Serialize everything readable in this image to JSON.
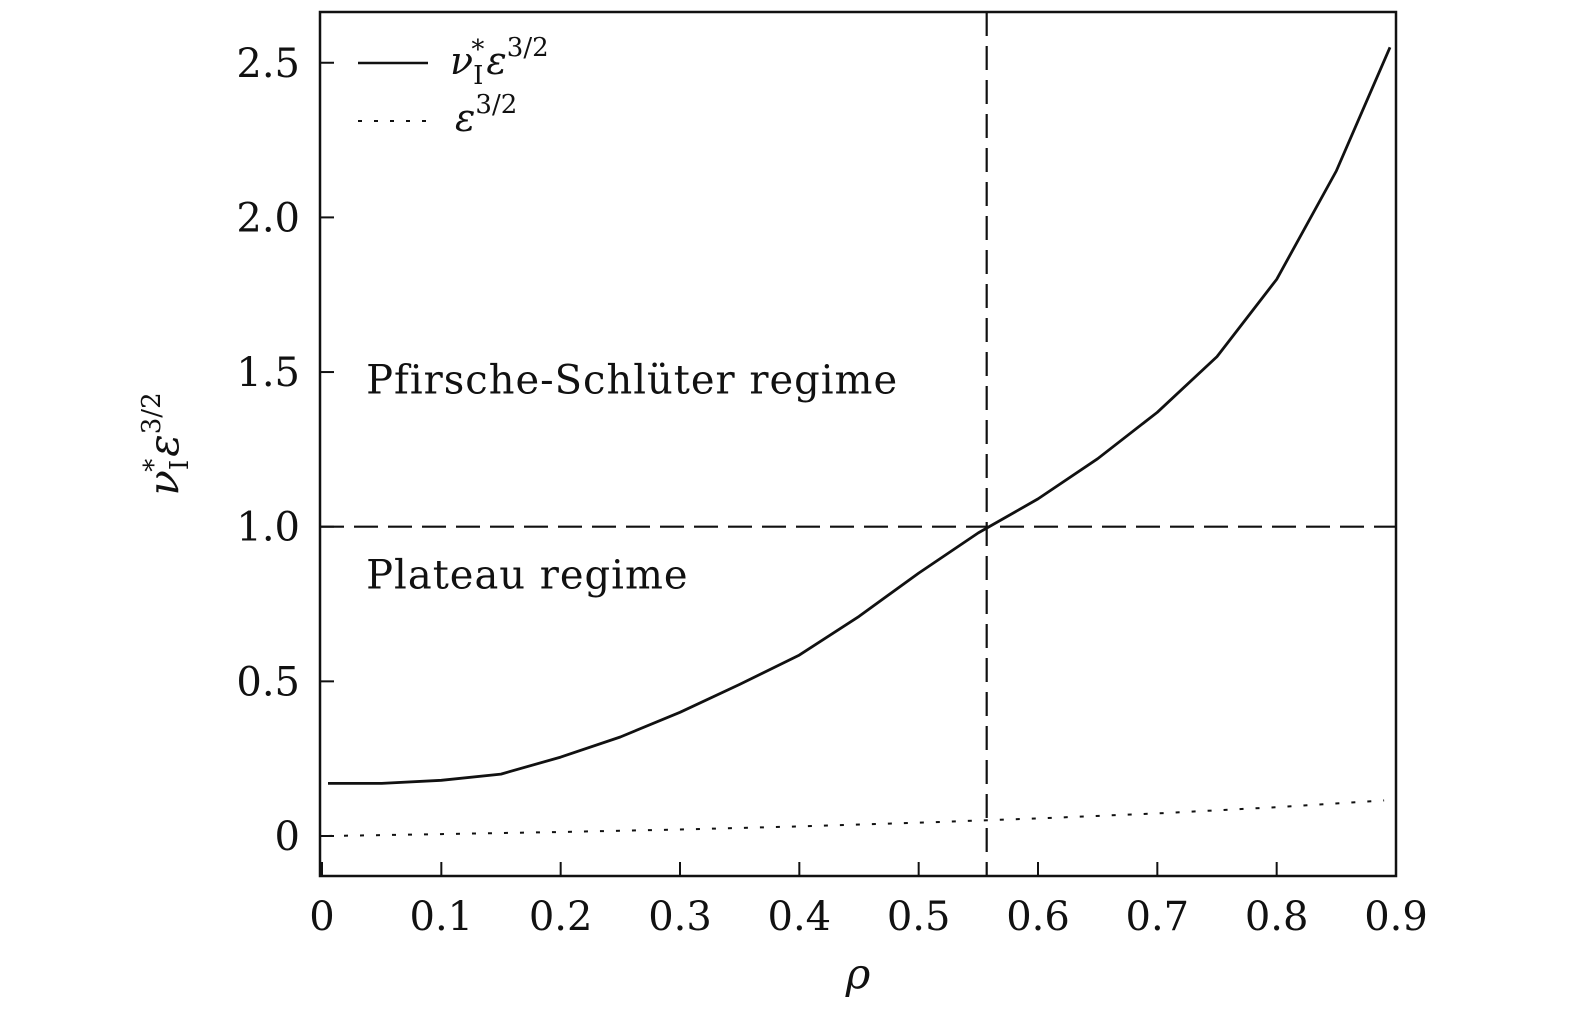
{
  "chart_data": {
    "type": "line",
    "xlabel": "ρ",
    "ylabel": {
      "base": "ν",
      "sub": "I",
      "star": "*",
      "epsilon": "ε",
      "exp": "3/2"
    },
    "xlim": [
      0,
      0.9
    ],
    "ylim": [
      -0.25,
      2.6
    ],
    "grid": false,
    "legend_position": "top-left",
    "x_ticks": [
      {
        "value": 0,
        "label": "0"
      },
      {
        "value": 0.1,
        "label": "0.1"
      },
      {
        "value": 0.2,
        "label": "0.2"
      },
      {
        "value": 0.3,
        "label": "0.3"
      },
      {
        "value": 0.4,
        "label": "0.4"
      },
      {
        "value": 0.5,
        "label": "0.5"
      },
      {
        "value": 0.6,
        "label": "0.6"
      },
      {
        "value": 0.7,
        "label": "0.7"
      },
      {
        "value": 0.8,
        "label": "0.8"
      },
      {
        "value": 0.9,
        "label": "0.9"
      }
    ],
    "y_ticks": [
      {
        "value": 0,
        "label": "0"
      },
      {
        "value": 0.5,
        "label": "0.5"
      },
      {
        "value": 1.0,
        "label": "1.0"
      },
      {
        "value": 1.5,
        "label": "1.5"
      },
      {
        "value": 2.0,
        "label": "2.0"
      },
      {
        "value": 2.5,
        "label": "2.5"
      }
    ],
    "series": [
      {
        "legend": {
          "base": "ν",
          "sub": "I",
          "star": "*",
          "epsilon": "ε",
          "exp": "3/2"
        },
        "style": "solid",
        "x": [
          0.005,
          0.05,
          0.1,
          0.15,
          0.2,
          0.25,
          0.3,
          0.35,
          0.4,
          0.45,
          0.5,
          0.55,
          0.6,
          0.65,
          0.7,
          0.75,
          0.8,
          0.85,
          0.895
        ],
        "y": [
          0.17,
          0.17,
          0.18,
          0.2,
          0.255,
          0.32,
          0.4,
          0.49,
          0.585,
          0.71,
          0.85,
          0.98,
          1.09,
          1.22,
          1.37,
          1.55,
          1.8,
          2.15,
          2.55
        ]
      },
      {
        "legend": {
          "epsilon": "ε",
          "exp": "3/2"
        },
        "style": "dotted",
        "x": [
          0.005,
          0.1,
          0.2,
          0.3,
          0.4,
          0.5,
          0.6,
          0.7,
          0.8,
          0.89
        ],
        "y": [
          0.0,
          0.006,
          0.013,
          0.021,
          0.031,
          0.043,
          0.057,
          0.073,
          0.093,
          0.115
        ]
      }
    ],
    "reference_lines": [
      {
        "orientation": "vertical",
        "x": 0.557,
        "style": "dashed"
      },
      {
        "orientation": "horizontal",
        "y": 1.0,
        "style": "dashed"
      }
    ],
    "annotations": [
      {
        "text": "Pfirsche-Schlüter regime",
        "x": 0.037,
        "y": 1.43
      },
      {
        "text": "Plateau regime",
        "x": 0.037,
        "y": 0.8
      }
    ]
  }
}
